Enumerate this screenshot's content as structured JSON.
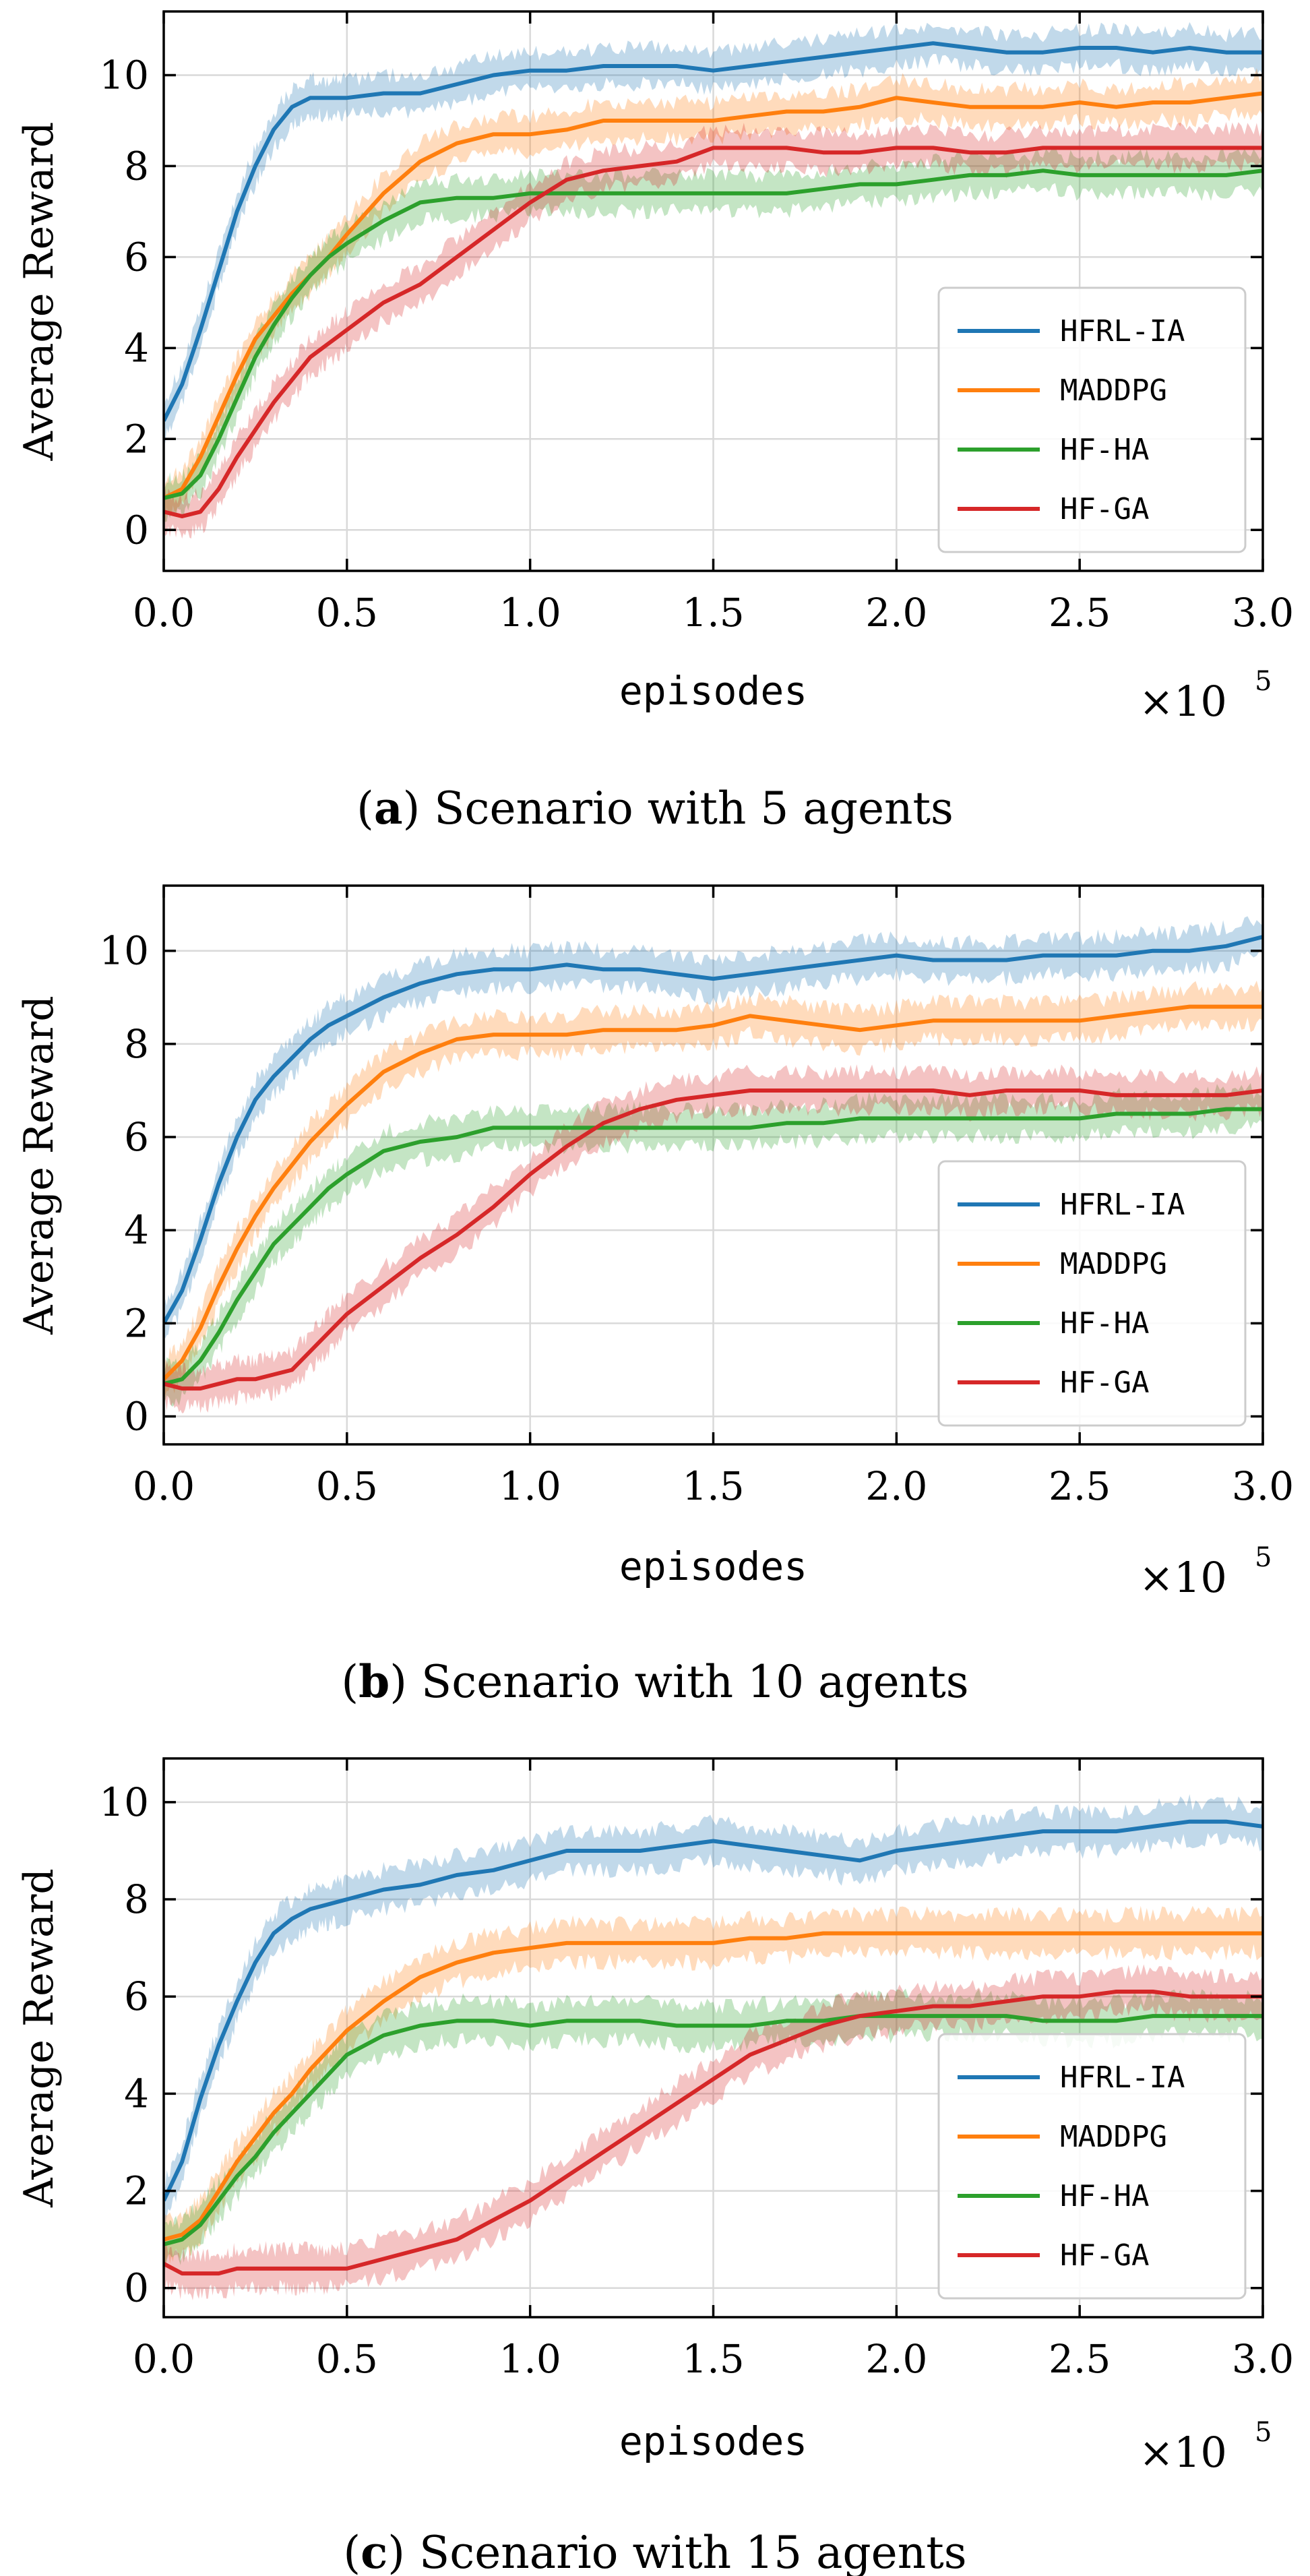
{
  "chart_data": [
    {
      "type": "line",
      "caption_label": "a",
      "caption_text": "Scenario with 5 agents",
      "xlabel": "episodes",
      "ylabel": "Average Reward",
      "x_multiplier_base": "×10",
      "x_multiplier_exp": "5",
      "xlim": [
        0,
        3.0
      ],
      "ylim": [
        -0.9,
        11.4
      ],
      "xticks": [
        "0.0",
        "0.5",
        "1.0",
        "1.5",
        "2.0",
        "2.5",
        "3.0"
      ],
      "yticks": [
        "0",
        "2",
        "4",
        "6",
        "8",
        "10"
      ],
      "grid": true,
      "legend_position": "lower-right",
      "x": [
        0,
        0.05,
        0.1,
        0.15,
        0.2,
        0.25,
        0.3,
        0.35,
        0.4,
        0.45,
        0.5,
        0.6,
        0.7,
        0.8,
        0.9,
        1.0,
        1.1,
        1.2,
        1.3,
        1.4,
        1.5,
        1.6,
        1.7,
        1.8,
        1.9,
        2.0,
        2.1,
        2.2,
        2.3,
        2.4,
        2.5,
        2.6,
        2.7,
        2.8,
        2.9,
        3.0
      ],
      "series": [
        {
          "name": "HFRL-IA",
          "color": "#1f77b4",
          "values": [
            2.4,
            3.2,
            4.4,
            5.7,
            7.0,
            8.0,
            8.8,
            9.3,
            9.5,
            9.5,
            9.5,
            9.6,
            9.6,
            9.8,
            10.0,
            10.1,
            10.1,
            10.2,
            10.2,
            10.2,
            10.1,
            10.2,
            10.3,
            10.4,
            10.5,
            10.6,
            10.7,
            10.6,
            10.5,
            10.5,
            10.6,
            10.6,
            10.5,
            10.6,
            10.5,
            10.5
          ]
        },
        {
          "name": "MADDPG",
          "color": "#ff7f0e",
          "values": [
            0.7,
            0.9,
            1.6,
            2.5,
            3.4,
            4.2,
            4.7,
            5.2,
            5.6,
            6.0,
            6.5,
            7.4,
            8.1,
            8.5,
            8.7,
            8.7,
            8.8,
            9.0,
            9.0,
            9.0,
            9.0,
            9.1,
            9.2,
            9.2,
            9.3,
            9.5,
            9.4,
            9.3,
            9.3,
            9.3,
            9.4,
            9.3,
            9.4,
            9.4,
            9.5,
            9.6
          ]
        },
        {
          "name": "HF-HA",
          "color": "#2ca02c",
          "values": [
            0.7,
            0.8,
            1.2,
            2.0,
            2.9,
            3.8,
            4.5,
            5.1,
            5.6,
            6.0,
            6.3,
            6.8,
            7.2,
            7.3,
            7.3,
            7.4,
            7.4,
            7.4,
            7.4,
            7.4,
            7.4,
            7.4,
            7.4,
            7.5,
            7.6,
            7.6,
            7.7,
            7.8,
            7.8,
            7.9,
            7.8,
            7.8,
            7.8,
            7.8,
            7.8,
            7.9
          ]
        },
        {
          "name": "HF-GA",
          "color": "#d62728",
          "values": [
            0.4,
            0.3,
            0.4,
            0.9,
            1.6,
            2.2,
            2.8,
            3.3,
            3.8,
            4.1,
            4.4,
            5.0,
            5.4,
            6.0,
            6.6,
            7.2,
            7.7,
            7.9,
            8.0,
            8.1,
            8.4,
            8.4,
            8.4,
            8.3,
            8.3,
            8.4,
            8.4,
            8.3,
            8.3,
            8.4,
            8.4,
            8.4,
            8.4,
            8.4,
            8.4,
            8.4
          ]
        }
      ]
    },
    {
      "type": "line",
      "caption_label": "b",
      "caption_text": "Scenario with 10 agents",
      "xlabel": "episodes",
      "ylabel": "Average Reward",
      "x_multiplier_base": "×10",
      "x_multiplier_exp": "5",
      "xlim": [
        0,
        3.0
      ],
      "ylim": [
        -0.6,
        11.4
      ],
      "xticks": [
        "0.0",
        "0.5",
        "1.0",
        "1.5",
        "2.0",
        "2.5",
        "3.0"
      ],
      "yticks": [
        "0",
        "2",
        "4",
        "6",
        "8",
        "10"
      ],
      "grid": true,
      "legend_position": "lower-right",
      "x": [
        0,
        0.05,
        0.1,
        0.15,
        0.2,
        0.25,
        0.3,
        0.35,
        0.4,
        0.45,
        0.5,
        0.6,
        0.7,
        0.8,
        0.9,
        1.0,
        1.1,
        1.2,
        1.3,
        1.4,
        1.5,
        1.6,
        1.7,
        1.8,
        1.9,
        2.0,
        2.1,
        2.2,
        2.3,
        2.4,
        2.5,
        2.6,
        2.7,
        2.8,
        2.9,
        3.0
      ],
      "series": [
        {
          "name": "HFRL-IA",
          "color": "#1f77b4",
          "values": [
            2.0,
            2.7,
            3.8,
            5.0,
            6.0,
            6.8,
            7.3,
            7.7,
            8.1,
            8.4,
            8.6,
            9.0,
            9.3,
            9.5,
            9.6,
            9.6,
            9.7,
            9.6,
            9.6,
            9.5,
            9.4,
            9.5,
            9.6,
            9.7,
            9.8,
            9.9,
            9.8,
            9.8,
            9.8,
            9.9,
            9.9,
            9.9,
            10.0,
            10.0,
            10.1,
            10.3
          ]
        },
        {
          "name": "MADDPG",
          "color": "#ff7f0e",
          "values": [
            0.8,
            1.2,
            1.9,
            2.8,
            3.6,
            4.3,
            4.9,
            5.4,
            5.9,
            6.3,
            6.7,
            7.4,
            7.8,
            8.1,
            8.2,
            8.2,
            8.2,
            8.3,
            8.3,
            8.3,
            8.4,
            8.6,
            8.5,
            8.4,
            8.3,
            8.4,
            8.5,
            8.5,
            8.5,
            8.5,
            8.5,
            8.6,
            8.7,
            8.8,
            8.8,
            8.8
          ]
        },
        {
          "name": "HF-HA",
          "color": "#2ca02c",
          "values": [
            0.7,
            0.8,
            1.2,
            1.8,
            2.5,
            3.1,
            3.7,
            4.1,
            4.5,
            4.9,
            5.2,
            5.7,
            5.9,
            6.0,
            6.2,
            6.2,
            6.2,
            6.2,
            6.2,
            6.2,
            6.2,
            6.2,
            6.3,
            6.3,
            6.4,
            6.4,
            6.4,
            6.4,
            6.4,
            6.4,
            6.4,
            6.5,
            6.5,
            6.5,
            6.6,
            6.6
          ]
        },
        {
          "name": "HF-GA",
          "color": "#d62728",
          "values": [
            0.7,
            0.6,
            0.6,
            0.7,
            0.8,
            0.8,
            0.9,
            1.0,
            1.4,
            1.8,
            2.2,
            2.8,
            3.4,
            3.9,
            4.5,
            5.2,
            5.8,
            6.3,
            6.6,
            6.8,
            6.9,
            7.0,
            7.0,
            7.0,
            7.0,
            7.0,
            7.0,
            6.9,
            7.0,
            7.0,
            7.0,
            6.9,
            6.9,
            6.9,
            6.9,
            7.0
          ]
        }
      ]
    },
    {
      "type": "line",
      "caption_label": "c",
      "caption_text": "Scenario with 15 agents",
      "xlabel": "episodes",
      "ylabel": "Average Reward",
      "x_multiplier_base": "×10",
      "x_multiplier_exp": "5",
      "xlim": [
        0,
        3.0
      ],
      "ylim": [
        -0.6,
        10.9
      ],
      "xticks": [
        "0.0",
        "0.5",
        "1.0",
        "1.5",
        "2.0",
        "2.5",
        "3.0"
      ],
      "yticks": [
        "0",
        "2",
        "4",
        "6",
        "8",
        "10"
      ],
      "grid": true,
      "legend_position": "lower-right",
      "x": [
        0,
        0.05,
        0.1,
        0.15,
        0.2,
        0.25,
        0.3,
        0.35,
        0.4,
        0.45,
        0.5,
        0.6,
        0.7,
        0.8,
        0.9,
        1.0,
        1.1,
        1.2,
        1.3,
        1.4,
        1.5,
        1.6,
        1.7,
        1.8,
        1.9,
        2.0,
        2.1,
        2.2,
        2.3,
        2.4,
        2.5,
        2.6,
        2.7,
        2.8,
        2.9,
        3.0
      ],
      "series": [
        {
          "name": "HFRL-IA",
          "color": "#1f77b4",
          "values": [
            1.8,
            2.6,
            3.9,
            5.0,
            5.9,
            6.7,
            7.3,
            7.6,
            7.8,
            7.9,
            8.0,
            8.2,
            8.3,
            8.5,
            8.6,
            8.8,
            9.0,
            9.0,
            9.0,
            9.1,
            9.2,
            9.1,
            9.0,
            8.9,
            8.8,
            9.0,
            9.1,
            9.2,
            9.3,
            9.4,
            9.4,
            9.4,
            9.5,
            9.6,
            9.6,
            9.5
          ]
        },
        {
          "name": "MADDPG",
          "color": "#ff7f0e",
          "values": [
            1.0,
            1.1,
            1.4,
            2.0,
            2.6,
            3.1,
            3.6,
            4.0,
            4.5,
            4.9,
            5.3,
            5.9,
            6.4,
            6.7,
            6.9,
            7.0,
            7.1,
            7.1,
            7.1,
            7.1,
            7.1,
            7.2,
            7.2,
            7.3,
            7.3,
            7.3,
            7.3,
            7.3,
            7.3,
            7.3,
            7.3,
            7.3,
            7.3,
            7.3,
            7.3,
            7.3
          ]
        },
        {
          "name": "HF-HA",
          "color": "#2ca02c",
          "values": [
            0.9,
            1.0,
            1.3,
            1.8,
            2.3,
            2.7,
            3.2,
            3.6,
            4.0,
            4.4,
            4.8,
            5.2,
            5.4,
            5.5,
            5.5,
            5.4,
            5.5,
            5.5,
            5.5,
            5.4,
            5.4,
            5.4,
            5.5,
            5.5,
            5.6,
            5.6,
            5.6,
            5.6,
            5.6,
            5.5,
            5.5,
            5.5,
            5.6,
            5.6,
            5.6,
            5.6
          ]
        },
        {
          "name": "HF-GA",
          "color": "#d62728",
          "values": [
            0.5,
            0.3,
            0.3,
            0.3,
            0.4,
            0.4,
            0.4,
            0.4,
            0.4,
            0.4,
            0.4,
            0.6,
            0.8,
            1.0,
            1.4,
            1.8,
            2.3,
            2.8,
            3.3,
            3.8,
            4.3,
            4.8,
            5.1,
            5.4,
            5.6,
            5.7,
            5.8,
            5.8,
            5.9,
            6.0,
            6.0,
            6.1,
            6.1,
            6.0,
            6.0,
            6.0
          ]
        }
      ]
    }
  ]
}
